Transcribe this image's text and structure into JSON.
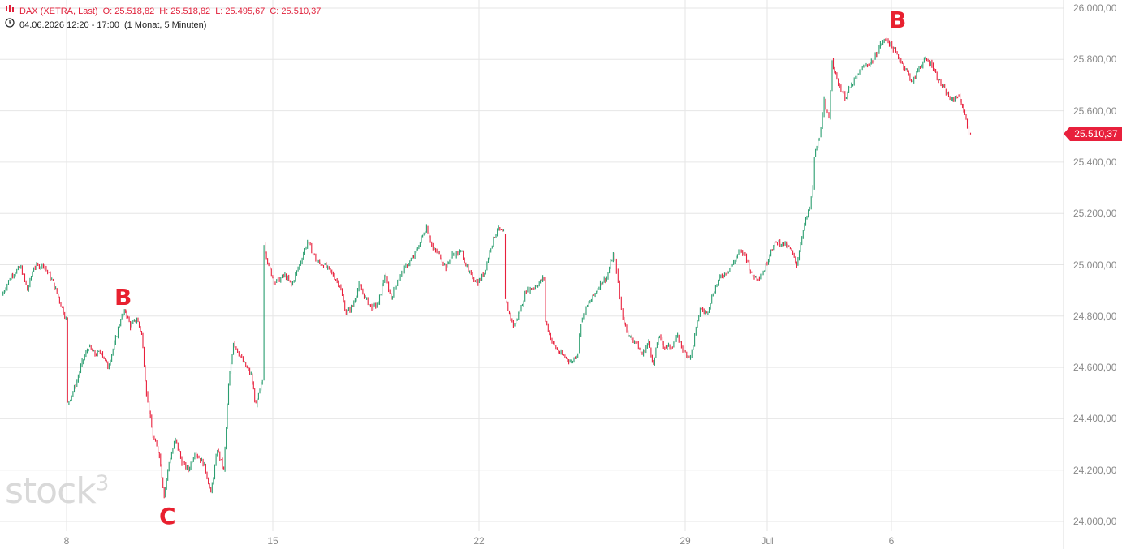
{
  "legend": {
    "symbol": "DAX (XETRA, Last)",
    "open": "O: 25.518,82",
    "high": "H: 25.518,82",
    "low": "L: 25.495,67",
    "close": "C: 25.510,37",
    "period": "04.06.2026 12:20 - 17:00",
    "interval": "(1 Monat, 5 Minuten)"
  },
  "watermark": "stock",
  "watermark_sup": "3",
  "last_price_label": "25.510,37",
  "wave_labels": [
    "B",
    "C",
    "B"
  ],
  "colors": {
    "up": "#2a9d6f",
    "down": "#e8203c",
    "grid": "#e6e6e6",
    "axis_text": "#888888"
  },
  "chart_data": {
    "type": "line",
    "title": "DAX (XETRA, Last)",
    "ylim": [
      24000,
      26000
    ],
    "yticks": [
      "24.000,00",
      "24.200,00",
      "24.400,00",
      "24.600,00",
      "24.800,00",
      "25.000,00",
      "25.200,00",
      "25.400,00",
      "25.600,00",
      "25.800,00",
      "26.000,00"
    ],
    "ytick_values": [
      24000,
      24200,
      24400,
      24600,
      24800,
      25000,
      25200,
      25400,
      25600,
      25800,
      26000
    ],
    "xticks": [
      "8",
      "15",
      "22",
      "29",
      "Jul",
      "6"
    ],
    "grid": true,
    "last_value": 25510.37,
    "series": [
      {
        "values": [
          [
            0,
            24880
          ],
          [
            0.3,
            24960
          ],
          [
            0.6,
            24990
          ],
          [
            0.8,
            24900
          ],
          [
            1.0,
            24990
          ],
          [
            1.3,
            25000
          ],
          [
            1.6,
            24930
          ],
          [
            2.0,
            24790
          ],
          [
            2.05,
            24460
          ],
          [
            2.3,
            24530
          ],
          [
            2.5,
            24620
          ],
          [
            2.7,
            24680
          ],
          [
            2.9,
            24650
          ],
          [
            3.1,
            24660
          ],
          [
            3.3,
            24600
          ],
          [
            3.5,
            24690
          ],
          [
            3.7,
            24790
          ],
          [
            3.85,
            24820
          ],
          [
            4.0,
            24760
          ],
          [
            4.2,
            24790
          ],
          [
            4.35,
            24730
          ],
          [
            4.5,
            24500
          ],
          [
            4.7,
            24330
          ],
          [
            4.9,
            24260
          ],
          [
            5.05,
            24100
          ],
          [
            5.2,
            24230
          ],
          [
            5.4,
            24320
          ],
          [
            5.6,
            24230
          ],
          [
            5.8,
            24200
          ],
          [
            6.0,
            24270
          ],
          [
            6.3,
            24220
          ],
          [
            6.5,
            24110
          ],
          [
            6.7,
            24280
          ],
          [
            6.9,
            24200
          ],
          [
            7.05,
            24530
          ],
          [
            7.2,
            24700
          ],
          [
            7.5,
            24620
          ],
          [
            7.75,
            24570
          ],
          [
            7.9,
            24450
          ],
          [
            8.1,
            24550
          ],
          [
            8.15,
            25080
          ],
          [
            8.3,
            24990
          ],
          [
            8.5,
            24930
          ],
          [
            8.8,
            24960
          ],
          [
            9.0,
            24920
          ],
          [
            9.25,
            25000
          ],
          [
            9.5,
            25090
          ],
          [
            9.8,
            25010
          ],
          [
            10.0,
            25000
          ],
          [
            10.3,
            24960
          ],
          [
            10.5,
            24920
          ],
          [
            10.7,
            24810
          ],
          [
            10.9,
            24840
          ],
          [
            11.1,
            24920
          ],
          [
            11.3,
            24870
          ],
          [
            11.5,
            24830
          ],
          [
            11.7,
            24850
          ],
          [
            11.9,
            24960
          ],
          [
            12.1,
            24870
          ],
          [
            12.3,
            24940
          ],
          [
            12.6,
            25000
          ],
          [
            12.8,
            25030
          ],
          [
            13.0,
            25090
          ],
          [
            13.2,
            25150
          ],
          [
            13.4,
            25060
          ],
          [
            13.6,
            25040
          ],
          [
            13.8,
            24990
          ],
          [
            14.0,
            25040
          ],
          [
            14.3,
            25050
          ],
          [
            14.5,
            24970
          ],
          [
            14.8,
            24930
          ],
          [
            15.0,
            24970
          ],
          [
            15.2,
            25070
          ],
          [
            15.4,
            25140
          ],
          [
            15.6,
            25120
          ],
          [
            15.65,
            24860
          ],
          [
            15.9,
            24760
          ],
          [
            16.1,
            24820
          ],
          [
            16.3,
            24900
          ],
          [
            16.5,
            24910
          ],
          [
            16.7,
            24930
          ],
          [
            16.85,
            24950
          ],
          [
            16.9,
            24780
          ],
          [
            17.1,
            24700
          ],
          [
            17.3,
            24660
          ],
          [
            17.5,
            24640
          ],
          [
            17.7,
            24620
          ],
          [
            17.9,
            24660
          ],
          [
            18.0,
            24780
          ],
          [
            18.2,
            24840
          ],
          [
            18.4,
            24880
          ],
          [
            18.6,
            24930
          ],
          [
            18.8,
            24950
          ],
          [
            19.0,
            25040
          ],
          [
            19.1,
            24980
          ],
          [
            19.2,
            24870
          ],
          [
            19.3,
            24790
          ],
          [
            19.5,
            24720
          ],
          [
            19.7,
            24700
          ],
          [
            19.9,
            24650
          ],
          [
            20.1,
            24700
          ],
          [
            20.25,
            24610
          ],
          [
            20.4,
            24720
          ],
          [
            20.6,
            24680
          ],
          [
            20.8,
            24680
          ],
          [
            21.0,
            24720
          ],
          [
            21.2,
            24660
          ],
          [
            21.4,
            24640
          ],
          [
            21.7,
            24830
          ],
          [
            21.9,
            24810
          ],
          [
            22.1,
            24890
          ],
          [
            22.3,
            24950
          ],
          [
            22.5,
            24970
          ],
          [
            22.7,
            25000
          ],
          [
            22.9,
            25050
          ],
          [
            23.1,
            25040
          ],
          [
            23.3,
            24960
          ],
          [
            23.5,
            24950
          ],
          [
            23.7,
            24980
          ],
          [
            23.9,
            25060
          ],
          [
            24.1,
            25090
          ],
          [
            24.3,
            25080
          ],
          [
            24.5,
            25060
          ],
          [
            24.7,
            25000
          ],
          [
            24.9,
            25140
          ],
          [
            25.1,
            25220
          ],
          [
            25.2,
            25300
          ],
          [
            25.25,
            25420
          ],
          [
            25.4,
            25500
          ],
          [
            25.5,
            25580
          ],
          [
            25.55,
            25640
          ],
          [
            25.6,
            25600
          ],
          [
            25.7,
            25570
          ],
          [
            25.8,
            25800
          ],
          [
            25.95,
            25720
          ],
          [
            26.2,
            25650
          ],
          [
            26.4,
            25700
          ],
          [
            26.7,
            25760
          ],
          [
            26.9,
            25780
          ],
          [
            27.1,
            25800
          ],
          [
            27.3,
            25860
          ],
          [
            27.5,
            25880
          ],
          [
            27.7,
            25840
          ],
          [
            27.9,
            25800
          ],
          [
            28.1,
            25760
          ],
          [
            28.3,
            25710
          ],
          [
            28.5,
            25770
          ],
          [
            28.7,
            25800
          ],
          [
            28.9,
            25780
          ],
          [
            29.1,
            25720
          ],
          [
            29.3,
            25680
          ],
          [
            29.5,
            25640
          ],
          [
            29.7,
            25660
          ],
          [
            29.85,
            25620
          ],
          [
            30.0,
            25540
          ],
          [
            30.1,
            25500
          ]
        ]
      }
    ]
  }
}
